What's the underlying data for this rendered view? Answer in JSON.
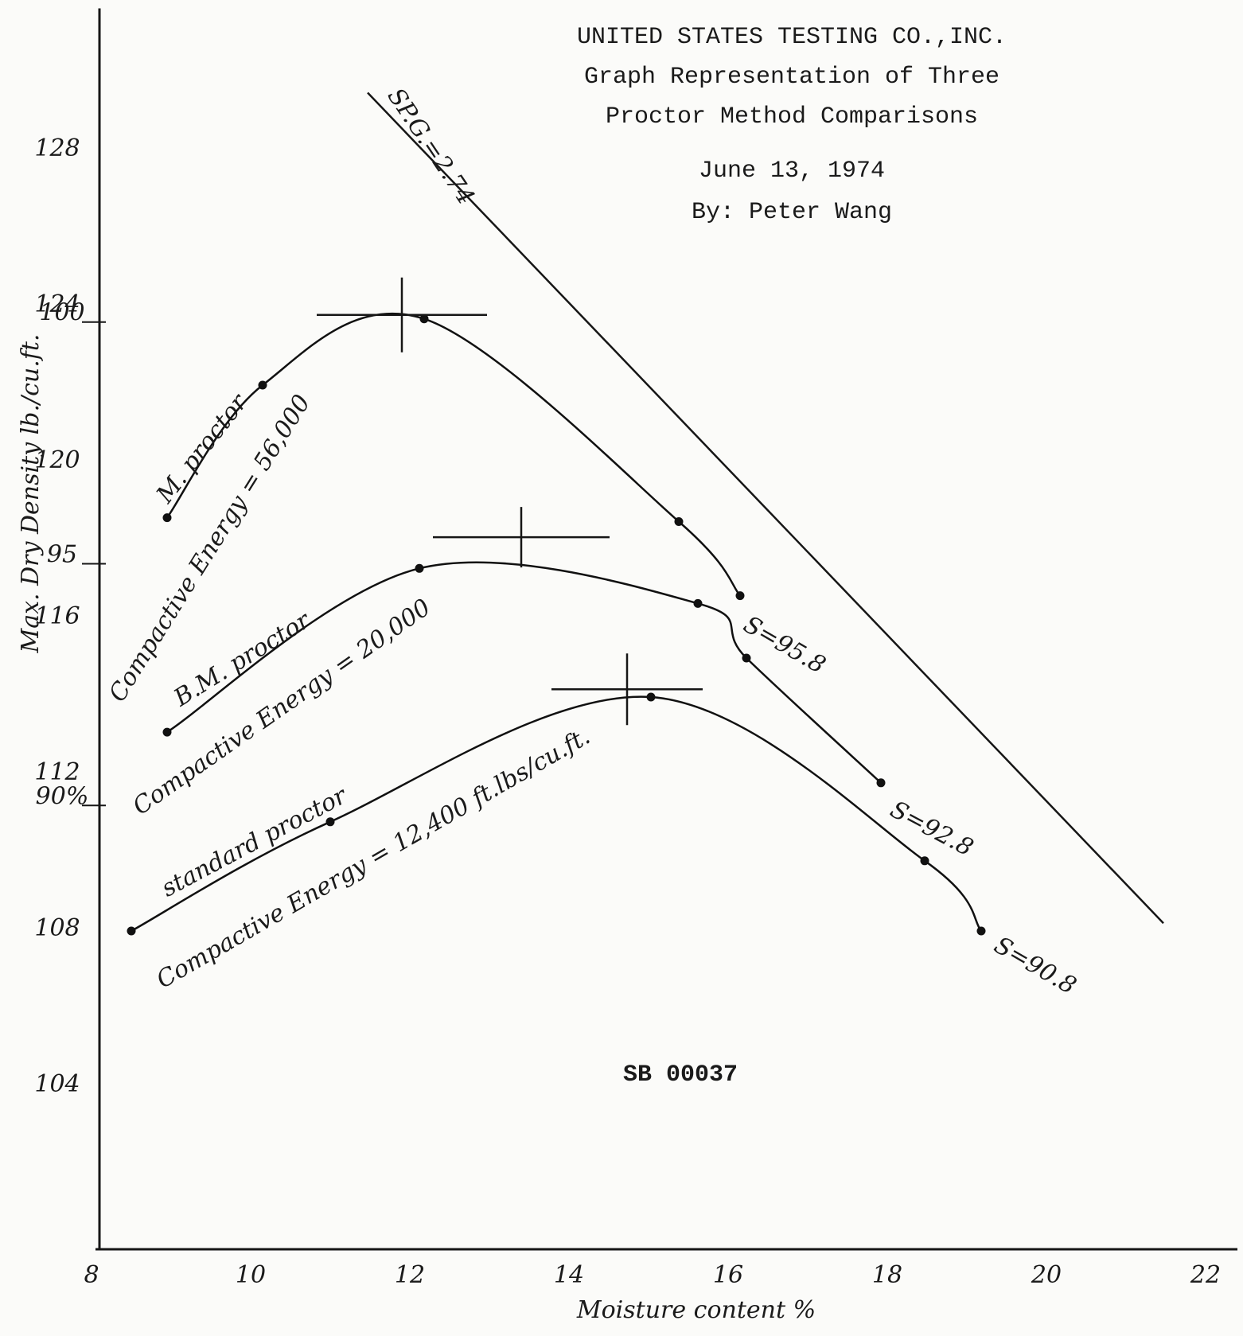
{
  "chart_data": {
    "type": "line",
    "title": [
      "UNITED STATES TESTING CO.,INC.",
      "Graph Representation of Three",
      "Proctor Method Comparisons",
      "June 13, 1974",
      "By:   Peter Wang"
    ],
    "x_label": "Moisture content %",
    "y_label": "Max. Dry Density lb./cu.ft.",
    "xlim": [
      8,
      22.3
    ],
    "ylim": [
      100,
      131.5
    ],
    "xticks": [
      8,
      10,
      12,
      14,
      16,
      18,
      20,
      22
    ],
    "yticks": [
      104,
      108,
      112,
      116,
      120,
      124,
      128
    ],
    "percent_ticks": [
      {
        "value": 123.7,
        "label": "100"
      },
      {
        "value": 117.5,
        "label": "95"
      },
      {
        "value": 111.3,
        "label": "90%"
      }
    ],
    "series": [
      {
        "name": "M. proctor",
        "color": "#111111",
        "x": [
          8.85,
          10.05,
          12.08,
          15.28,
          16.05
        ],
        "values": [
          118.6,
          122.0,
          123.7,
          118.5,
          116.6
        ],
        "peak": [
          11.8,
          123.8
        ]
      },
      {
        "name": "B.M. proctor",
        "color": "#111111",
        "x": [
          8.85,
          12.02,
          15.52,
          16.13,
          17.82
        ],
        "values": [
          113.1,
          117.3,
          116.4,
          115.0,
          111.8
        ],
        "peak": [
          13.3,
          118.1
        ]
      },
      {
        "name": "standard proctor",
        "color": "#111111",
        "x": [
          8.4,
          10.9,
          14.93,
          18.37,
          19.08
        ],
        "values": [
          108.0,
          110.8,
          114.0,
          109.8,
          108.0
        ],
        "peak": [
          14.63,
          114.2
        ]
      }
    ],
    "saturation_line": {
      "name": "SP.G.=2.74",
      "x": [
        11.37,
        21.37
      ],
      "values": [
        129.5,
        108.2
      ]
    },
    "annotations": [
      "Compactive Energy = 56,000",
      "Compactive Energy = 20,000",
      "Compactive Energy = 12,400 ft.lbs/cu.ft.",
      "S=95.8",
      "S=92.8",
      "S=90.8",
      "SB 00037"
    ]
  }
}
